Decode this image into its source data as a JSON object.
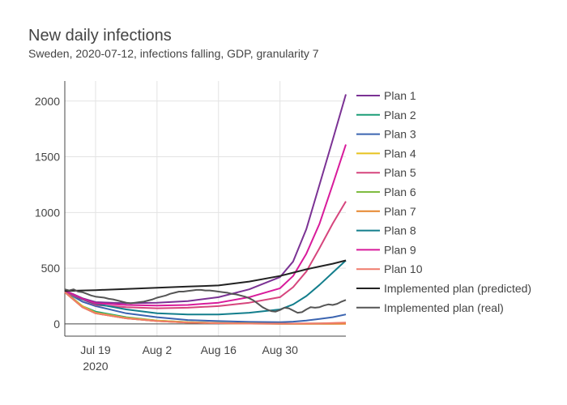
{
  "chart_data": {
    "type": "line",
    "title": "New daily infections",
    "subtitle": "Sweden, 2020-07-12, infections falling, GDP, granularity 7",
    "xlabel": "",
    "ylabel": "",
    "x_range": [
      0,
      64
    ],
    "ylim": [
      -110,
      2180
    ],
    "x_ticks": [
      {
        "day": 7,
        "label": "Jul 19",
        "sublabel": "2020"
      },
      {
        "day": 21,
        "label": "Aug 2"
      },
      {
        "day": 35,
        "label": "Aug 16"
      },
      {
        "day": 49,
        "label": "Aug 30"
      }
    ],
    "y_ticks": [
      0,
      500,
      1000,
      1500,
      2000
    ],
    "x": [
      0,
      4,
      7,
      14,
      21,
      28,
      35,
      42,
      49,
      52,
      55,
      58,
      61,
      64
    ],
    "series": [
      {
        "name": "Plan 1",
        "color": "#7b3294",
        "values": [
          300,
          230,
          195,
          185,
          190,
          205,
          240,
          310,
          420,
          560,
          850,
          1250,
          1650,
          2060
        ]
      },
      {
        "name": "Plan 2",
        "color": "#1b9e77",
        "values": [
          290,
          160,
          110,
          60,
          30,
          15,
          8,
          4,
          2,
          2,
          2,
          2,
          2,
          3
        ]
      },
      {
        "name": "Plan 3",
        "color": "#3b64b0",
        "values": [
          290,
          200,
          160,
          95,
          60,
          35,
          25,
          18,
          15,
          20,
          30,
          45,
          60,
          85
        ]
      },
      {
        "name": "Plan 4",
        "color": "#e6c31e",
        "values": [
          285,
          160,
          100,
          55,
          30,
          15,
          8,
          4,
          2,
          2,
          2,
          3,
          3,
          4
        ]
      },
      {
        "name": "Plan 5",
        "color": "#d6457d",
        "values": [
          285,
          220,
          170,
          150,
          140,
          145,
          160,
          190,
          240,
          330,
          470,
          680,
          900,
          1100
        ]
      },
      {
        "name": "Plan 6",
        "color": "#7fbc41",
        "values": [
          285,
          150,
          95,
          50,
          25,
          12,
          6,
          3,
          2,
          2,
          3,
          4,
          6,
          10
        ]
      },
      {
        "name": "Plan 7",
        "color": "#e6862c",
        "values": [
          285,
          150,
          95,
          50,
          25,
          12,
          6,
          3,
          1,
          1,
          1,
          1,
          1,
          1
        ]
      },
      {
        "name": "Plan 8",
        "color": "#137e8c",
        "values": [
          300,
          220,
          180,
          130,
          95,
          85,
          85,
          100,
          130,
          175,
          250,
          350,
          460,
          570
        ]
      },
      {
        "name": "Plan 9",
        "color": "#d81b9b",
        "values": [
          300,
          225,
          185,
          170,
          165,
          170,
          190,
          240,
          320,
          430,
          630,
          900,
          1250,
          1610
        ]
      },
      {
        "name": "Plan 10",
        "color": "#ef7b6b",
        "values": [
          285,
          150,
          95,
          50,
          25,
          12,
          6,
          3,
          2,
          3,
          4,
          5,
          8,
          12
        ]
      },
      {
        "name": "Implemented plan (predicted)",
        "color": "#222222",
        "values": [
          295,
          300,
          303,
          314,
          324,
          335,
          345,
          380,
          430,
          460,
          490,
          515,
          540,
          570
        ]
      }
    ],
    "real_series": {
      "name": "Implemented plan (real)",
      "color": "#555555",
      "x": [
        0,
        1,
        2,
        3,
        4,
        5,
        6,
        7,
        8,
        9,
        10,
        11,
        12,
        13,
        14,
        15,
        16,
        17,
        18,
        19,
        20,
        21,
        22,
        23,
        24,
        25,
        26,
        27,
        28,
        29,
        30,
        31,
        32,
        33,
        34,
        35,
        36,
        37,
        38,
        39,
        40,
        41,
        42,
        43,
        44,
        45,
        46,
        47,
        48,
        49,
        50,
        51,
        52,
        53,
        54,
        55,
        56,
        57,
        58,
        59,
        60,
        61,
        62,
        63,
        64
      ],
      "values": [
        310,
        300,
        310,
        290,
        285,
        270,
        255,
        245,
        240,
        235,
        225,
        220,
        210,
        200,
        190,
        185,
        190,
        195,
        200,
        210,
        220,
        235,
        245,
        255,
        270,
        280,
        290,
        290,
        295,
        300,
        305,
        305,
        300,
        300,
        295,
        290,
        285,
        280,
        270,
        265,
        255,
        245,
        230,
        210,
        180,
        150,
        130,
        115,
        110,
        125,
        145,
        140,
        120,
        100,
        105,
        130,
        150,
        145,
        150,
        165,
        175,
        170,
        180,
        200,
        215
      ]
    },
    "legend_position": "right",
    "grid": true
  }
}
